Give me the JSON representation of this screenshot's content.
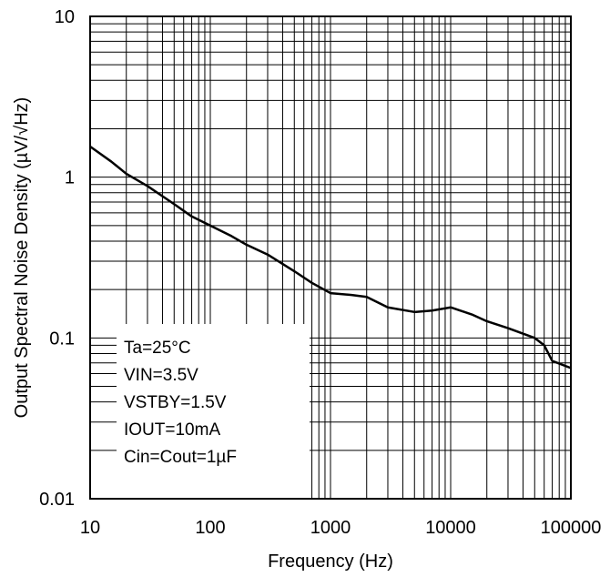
{
  "chart_data": {
    "type": "line",
    "xlabel": "Frequency (Hz)",
    "ylabel": "Output Spectral Noise Density (µV/√Hz)",
    "x_scale": "log",
    "y_scale": "log",
    "xlim": [
      10,
      100000
    ],
    "ylim": [
      0.01,
      10
    ],
    "x_ticks": [
      "10",
      "100",
      "1000",
      "10000",
      "100000"
    ],
    "y_ticks": [
      "0.01",
      "0.1",
      "1",
      "10"
    ],
    "grid": true,
    "series": [
      {
        "x": [
          10,
          15,
          20,
          30,
          50,
          70,
          100,
          150,
          200,
          300,
          500,
          700,
          1000,
          1500,
          2000,
          3000,
          5000,
          7000,
          10000,
          15000,
          20000,
          30000,
          50000,
          60000,
          70000,
          100000
        ],
        "values": [
          1.55,
          1.25,
          1.05,
          0.88,
          0.68,
          0.57,
          0.5,
          0.43,
          0.38,
          0.33,
          0.26,
          0.22,
          0.19,
          0.185,
          0.18,
          0.155,
          0.145,
          0.148,
          0.155,
          0.14,
          0.127,
          0.115,
          0.1,
          0.09,
          0.072,
          0.065
        ],
        "color": "#000000"
      }
    ],
    "annotations": [
      "Ta=25°C",
      "VIN=3.5V",
      "VSTBY=1.5V",
      "IOUT=10mA",
      "Cin=Cout=1µF"
    ]
  }
}
